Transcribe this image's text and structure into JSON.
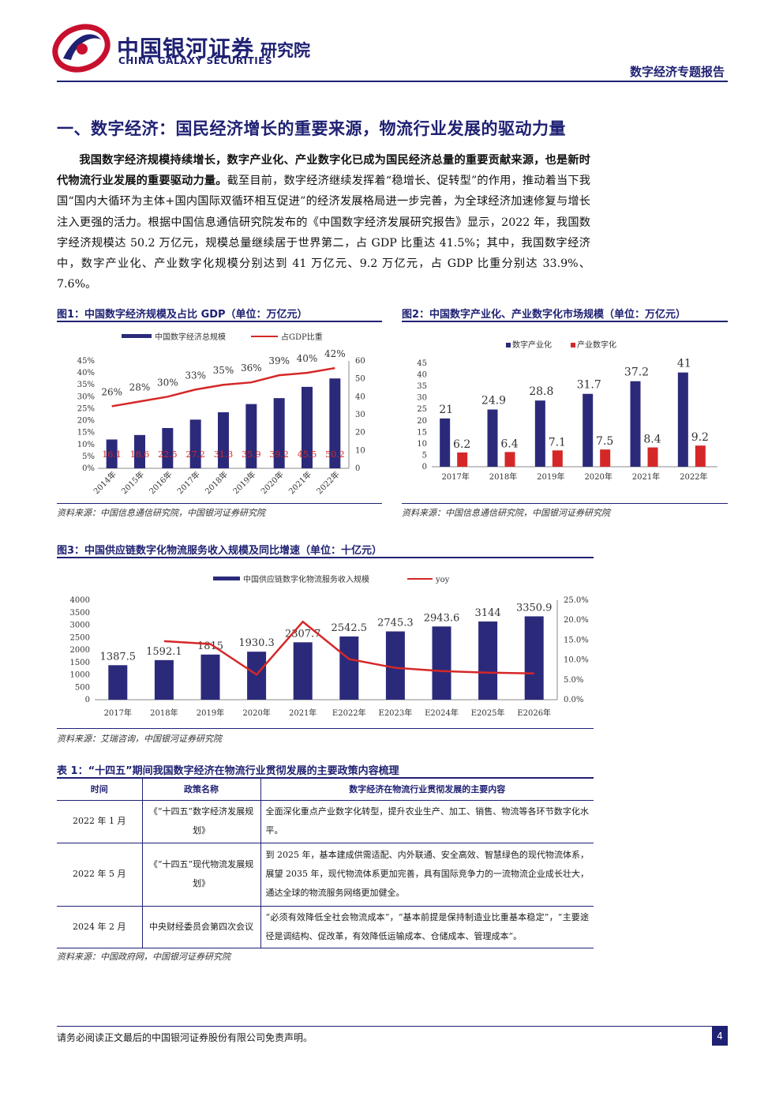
{
  "header": {
    "brand_cn": "中国银河证券",
    "brand_en": "CHINA GALAXY SECURITIES",
    "institute": "研究院",
    "report_type": "数字经济专题报告"
  },
  "section": {
    "title": "一、数字经济：国民经济增长的重要来源，物流行业发展的驱动力量",
    "body_lead": "我国数字经济规模持续增长，数字产业化、产业数字化已成为国民经济总量的重要贡献来源，也是新时代物流行业发展的重要驱动力量。",
    "body_rest": "截至目前，数字经济继续发挥着“稳增长、促转型”的作用，推动着当下我国“国内大循环为主体+国内国际双循环相互促进”的经济发展格局进一步完善，为全球经济加速修复与增长注入更强的活力。根据中国信息通信研究院发布的《中国数字经济发展研究报告》显示，2022 年，我国数字经济规模达 50.2 万亿元，规模总量继续居于世界第二，占 GDP 比重达 41.5%；其中，我国数字经济中，数字产业化、产业数字化规模分别达到 41 万亿元、9.2 万亿元，占 GDP 比重分别达 33.9%、7.6%。"
  },
  "fig1": {
    "caption": "图1：中国数字经济规模及占比 GDP（单位：万亿元）",
    "source": "资料来源：中国信息通信研究院，中国银河证券研究院"
  },
  "fig2": {
    "caption": "图2：中国数字产业化、产业数字化市场规模（单位：万亿元）",
    "source": "资料来源：中国信息通信研究院，中国银河证券研究院"
  },
  "fig3": {
    "caption": "图3：中国供应链数字化物流服务收入规模及同比增速（单位：十亿元）",
    "source": "资料来源：艾瑞咨询，中国银河证券研究院"
  },
  "chart_data": [
    {
      "type": "bar",
      "categories": [
        "2014年",
        "2015年",
        "2016年",
        "2017年",
        "2018年",
        "2019年",
        "2020年",
        "2021年",
        "2022年"
      ],
      "series": [
        {
          "name": "中国数字经济总规模",
          "type": "bar",
          "axis": "right",
          "values": [
            16.1,
            18.6,
            22.5,
            27.2,
            31.3,
            35.9,
            39.2,
            45.5,
            50.2
          ],
          "color": "#2b2a7a"
        },
        {
          "name": "占GDP比重",
          "type": "line",
          "axis": "left",
          "values": [
            26,
            28,
            30,
            33,
            35,
            36,
            39,
            40,
            42
          ],
          "labels": [
            "26%",
            "28%",
            "30%",
            "33%",
            "35%",
            "36%",
            "39%",
            "40%",
            "42%"
          ],
          "color": "#d62728"
        }
      ],
      "y_left": {
        "ticks": [
          "0%",
          "5%",
          "10%",
          "15%",
          "20%",
          "25%",
          "30%",
          "35%",
          "40%",
          "45%"
        ],
        "range": [
          0,
          45
        ]
      },
      "y_right": {
        "ticks": [
          "0",
          "10",
          "20",
          "30",
          "40",
          "50",
          "60"
        ],
        "range": [
          0,
          60
        ]
      },
      "legend": "top"
    },
    {
      "type": "bar",
      "categories": [
        "2017年",
        "2018年",
        "2019年",
        "2020年",
        "2021年",
        "2022年"
      ],
      "series": [
        {
          "name": "数字产业化",
          "values": [
            21,
            24.9,
            28.8,
            31.7,
            37.2,
            41
          ],
          "labels": [
            "21",
            "24.9",
            "28.8",
            "31.7",
            "37.2",
            "41"
          ],
          "color": "#2b2a7a"
        },
        {
          "name": "产业数字化",
          "values": [
            6.2,
            6.4,
            7.1,
            7.5,
            8.4,
            9.2
          ],
          "labels": [
            "6.2",
            "6.4",
            "7.1",
            "7.5",
            "8.4",
            "9.2"
          ],
          "color": "#d62728"
        }
      ],
      "y": {
        "ticks": [
          "0",
          "5",
          "10",
          "15",
          "20",
          "25",
          "30",
          "35",
          "40",
          "45"
        ],
        "range": [
          0,
          45
        ]
      },
      "legend": "top"
    },
    {
      "type": "bar",
      "categories": [
        "2017年",
        "2018年",
        "2019年",
        "2020年",
        "2021年",
        "E2022年",
        "E2023年",
        "E2024年",
        "E2025年",
        "E2026年"
      ],
      "series": [
        {
          "name": "中国供应链数字化物流服务收入规模",
          "type": "bar",
          "axis": "left",
          "values": [
            1387.5,
            1592.1,
            1815,
            1930.3,
            2307.7,
            2542.5,
            2745.3,
            2943.6,
            3144,
            3350.9
          ],
          "labels": [
            "1387.5",
            "1592.1",
            "1815",
            "1930.3",
            "2307.7",
            "2542.5",
            "2745.3",
            "2943.6",
            "3144",
            "3350.9"
          ],
          "color": "#2b2a7a"
        },
        {
          "name": "yoy",
          "type": "line",
          "axis": "right",
          "values": [
            null,
            14.7,
            14.0,
            6.3,
            19.6,
            10.2,
            8.0,
            7.2,
            6.8,
            6.6
          ],
          "color": "#d62728"
        }
      ],
      "y_left": {
        "ticks": [
          "0",
          "500",
          "1000",
          "1500",
          "2000",
          "2500",
          "3000",
          "3500",
          "4000"
        ],
        "range": [
          0,
          4000
        ]
      },
      "y_right": {
        "ticks": [
          "0.0%",
          "5.0%",
          "10.0%",
          "15.0%",
          "20.0%",
          "25.0%"
        ],
        "range": [
          0,
          25
        ]
      },
      "legend": "top"
    }
  ],
  "table1": {
    "caption": "表 1：“十四五”期间我国数字经济在物流行业贯彻发展的主要政策内容梳理",
    "headers": [
      "时间",
      "政策名称",
      "数字经济在物流行业贯彻发展的主要内容"
    ],
    "rows": [
      [
        "2022 年 1 月",
        "《“十四五”数字经济发展规划》",
        "全面深化重点产业数字化转型，提升农业生产、加工、销售、物流等各环节数字化水平。"
      ],
      [
        "2022 年 5 月",
        "《“十四五”现代物流发展规划》",
        "到 2025 年，基本建成供需适配、内外联通、安全高效、智慧绿色的现代物流体系，展望 2035 年，现代物流体系更加完善，具有国际竞争力的一流物流企业成长壮大，通达全球的物流服务网络更加健全。"
      ],
      [
        "2024 年 2 月",
        "中央财经委员会第四次会议",
        "“必须有效降低全社会物流成本”，“基本前提是保持制造业比重基本稳定”，“主要途径是调结构、促改革，有效降低运输成本、仓储成本、管理成本”。"
      ]
    ],
    "source": "资料来源：中国政府网，中国银河证券研究院"
  },
  "footer": {
    "disclaimer": "请务必阅读正文最后的中国银河证券股份有限公司免责声明。",
    "page": "4"
  },
  "colors": {
    "brand": "#1f2173",
    "bar": "#2b2a7a",
    "line": "#d62728"
  }
}
